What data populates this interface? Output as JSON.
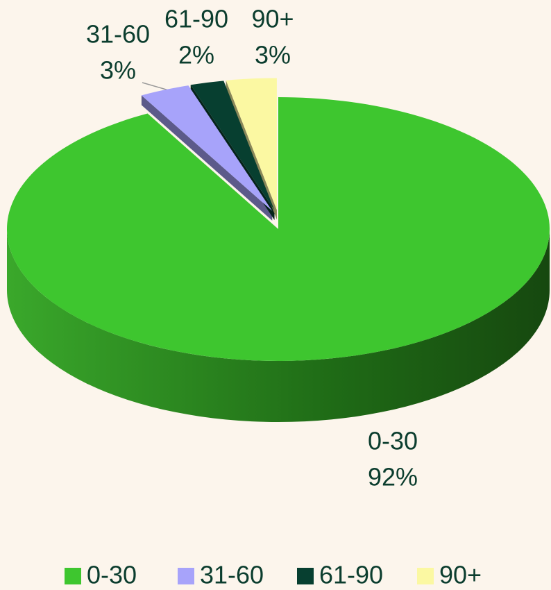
{
  "chart_data": {
    "type": "pie3d",
    "categories": [
      "0-30",
      "31-60",
      "61-90",
      "90+"
    ],
    "values": [
      92,
      3,
      2,
      3
    ],
    "value_labels": [
      "92%",
      "3%",
      "2%",
      "3%"
    ],
    "colors": [
      "#3ec62f",
      "#a7a3fa",
      "#073f30",
      "#fbf8a2"
    ],
    "legend": "bottom"
  }
}
